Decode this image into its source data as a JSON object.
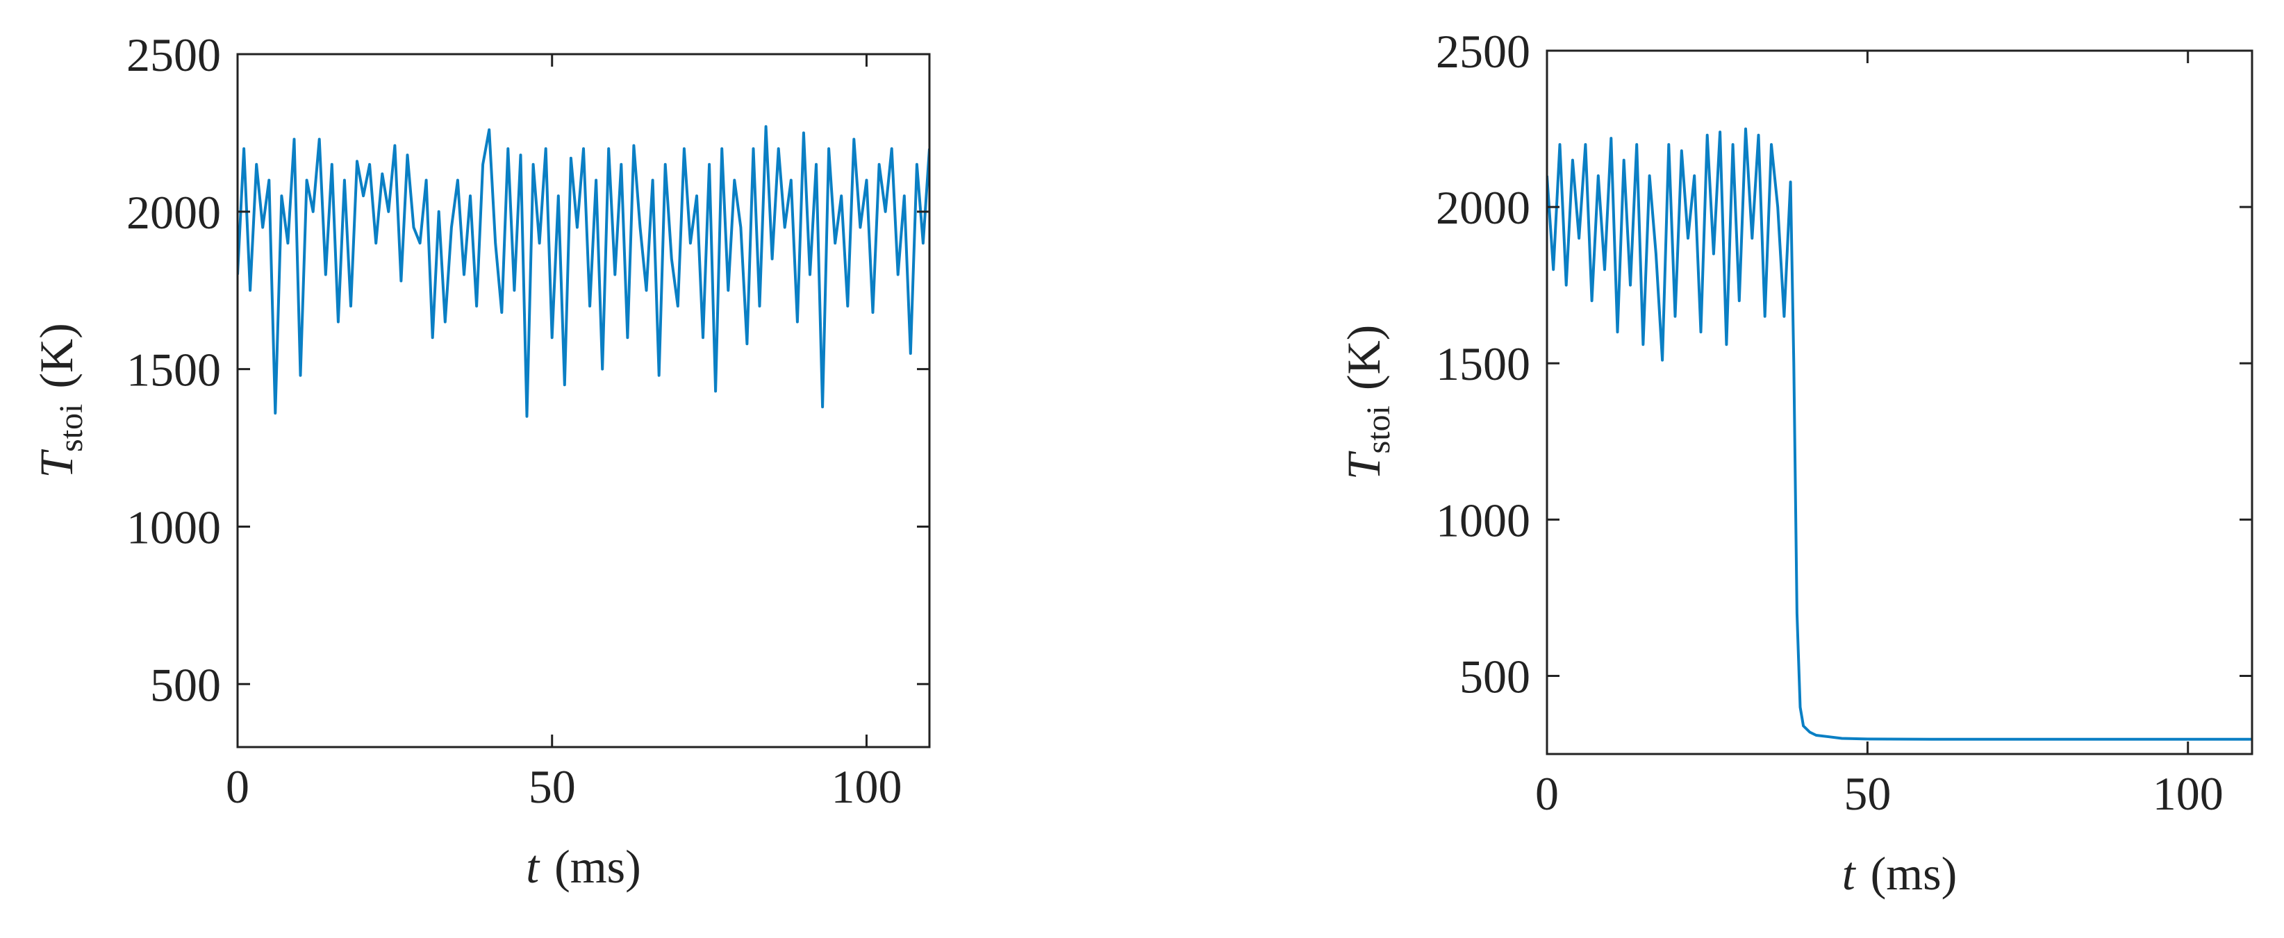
{
  "chart_data": [
    {
      "type": "line",
      "color": "#0a7fc4",
      "xlabel": {
        "symbol": "t",
        "unit": "(ms)"
      },
      "ylabel": {
        "symbol": "T",
        "subscript": "stoi",
        "unit": "(K)"
      },
      "xlim": [
        0,
        110
      ],
      "xticks": [
        0,
        50,
        100
      ],
      "ylim": [
        300,
        2500
      ],
      "yticks": [
        500,
        1000,
        1500,
        2000,
        2500
      ],
      "x": [
        0,
        1,
        2,
        3,
        4,
        5,
        6,
        7,
        8,
        9,
        10,
        11,
        12,
        13,
        14,
        15,
        16,
        17,
        18,
        19,
        20,
        21,
        22,
        23,
        24,
        25,
        26,
        27,
        28,
        29,
        30,
        31,
        32,
        33,
        34,
        35,
        36,
        37,
        38,
        39,
        40,
        41,
        42,
        43,
        44,
        45,
        46,
        47,
        48,
        49,
        50,
        51,
        52,
        53,
        54,
        55,
        56,
        57,
        58,
        59,
        60,
        61,
        62,
        63,
        64,
        65,
        66,
        67,
        68,
        69,
        70,
        71,
        72,
        73,
        74,
        75,
        76,
        77,
        78,
        79,
        80,
        81,
        82,
        83,
        84,
        85,
        86,
        87,
        88,
        89,
        90,
        91,
        92,
        93,
        94,
        95,
        96,
        97,
        98,
        99,
        100,
        101,
        102,
        103,
        104,
        105,
        106,
        107,
        108,
        109,
        110
      ],
      "values": [
        1800,
        2200,
        1750,
        2150,
        1950,
        2100,
        1360,
        2050,
        1900,
        2230,
        1480,
        2100,
        2000,
        2230,
        1800,
        2150,
        1650,
        2100,
        1700,
        2160,
        2050,
        2150,
        1900,
        2120,
        2000,
        2210,
        1780,
        2180,
        1950,
        1900,
        2100,
        1600,
        2000,
        1650,
        1950,
        2100,
        1800,
        2050,
        1700,
        2150,
        2260,
        1900,
        1680,
        2200,
        1750,
        2180,
        1350,
        2150,
        1900,
        2200,
        1600,
        2050,
        1450,
        2170,
        1950,
        2200,
        1700,
        2100,
        1500,
        2200,
        1800,
        2150,
        1600,
        2210,
        1950,
        1750,
        2100,
        1480,
        2150,
        1850,
        1700,
        2200,
        1900,
        2050,
        1600,
        2150,
        1430,
        2200,
        1750,
        2100,
        1950,
        1580,
        2200,
        1700,
        2270,
        1850,
        2200,
        1950,
        2100,
        1650,
        2250,
        1800,
        2150,
        1380,
        2200,
        1900,
        2050,
        1700,
        2230,
        1950,
        2100,
        1680,
        2150,
        2000,
        2200,
        1800,
        2050,
        1550,
        2150,
        1900,
        2200
      ]
    },
    {
      "type": "line",
      "color": "#0a7fc4",
      "xlabel": {
        "symbol": "t",
        "unit": "(ms)"
      },
      "ylabel": {
        "symbol": "T",
        "subscript": "stoi",
        "unit": "(K)"
      },
      "xlim": [
        0,
        110
      ],
      "xticks": [
        0,
        50,
        100
      ],
      "ylim": [
        250,
        2500
      ],
      "yticks": [
        500,
        1000,
        1500,
        2000,
        2500
      ],
      "x": [
        0,
        1,
        2,
        3,
        4,
        5,
        6,
        7,
        8,
        9,
        10,
        11,
        12,
        13,
        14,
        15,
        16,
        17,
        18,
        19,
        20,
        21,
        22,
        23,
        24,
        25,
        26,
        27,
        28,
        29,
        30,
        31,
        32,
        33,
        34,
        35,
        36,
        37,
        38,
        38.5,
        39,
        39.5,
        40,
        41,
        42,
        44,
        46,
        50,
        60,
        70,
        80,
        90,
        100,
        110
      ],
      "values": [
        2100,
        1800,
        2200,
        1750,
        2150,
        1900,
        2200,
        1700,
        2100,
        1800,
        2220,
        1600,
        2150,
        1750,
        2200,
        1560,
        2100,
        1850,
        1510,
        2200,
        1650,
        2180,
        1900,
        2100,
        1600,
        2230,
        1850,
        2240,
        1560,
        2200,
        1700,
        2250,
        1900,
        2230,
        1650,
        2200,
        2000,
        1650,
        2080,
        1500,
        700,
        400,
        340,
        320,
        310,
        305,
        300,
        298,
        297,
        297,
        297,
        297,
        297,
        297
      ]
    }
  ]
}
